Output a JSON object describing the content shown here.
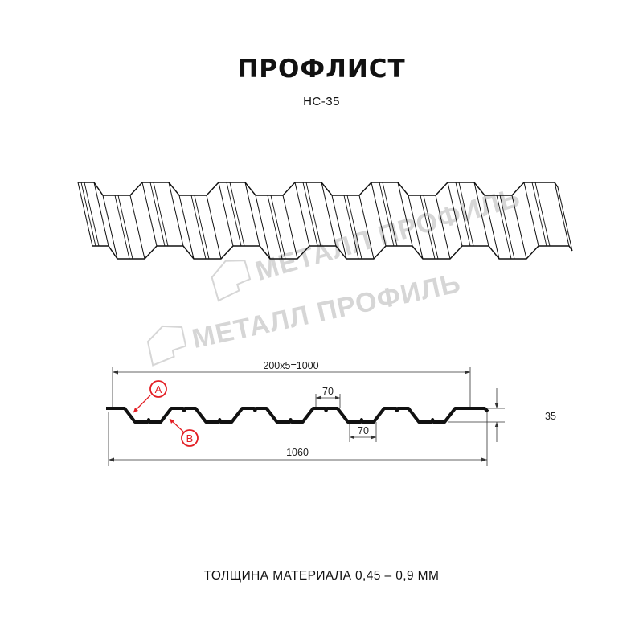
{
  "header": {
    "title": "ПРОФЛИСТ",
    "subtitle": "НС-35"
  },
  "watermark": {
    "text": "МЕТАЛЛ ПРОФИЛЬ",
    "color": "#d3d3d3"
  },
  "drawing": {
    "pitch_label": "200x5=1000",
    "top_flat_label": "70",
    "bottom_flat_label": "70",
    "height_label": "35",
    "total_width_label": "1060",
    "marker_a": "A",
    "marker_b": "B",
    "marker_color": "#e31e24",
    "profile_color": "#111111"
  },
  "footer": {
    "thickness_text": "ТОЛЩИНА МАТЕРИАЛА 0,45 – 0,9 ММ"
  }
}
